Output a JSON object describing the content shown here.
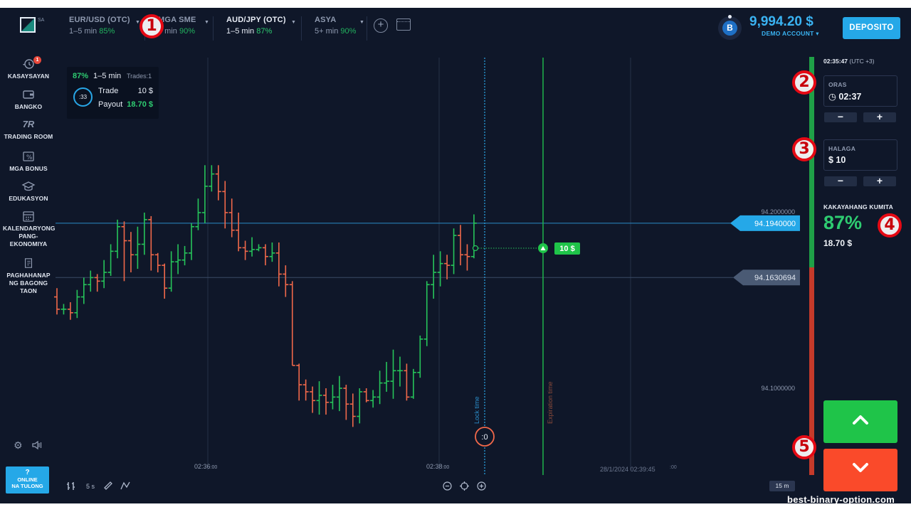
{
  "topbar": {
    "logo_text": "SA",
    "tabs": [
      {
        "name": "EUR/USD (OTC)",
        "range": "1–5 min",
        "pct": "85%"
      },
      {
        "name": "MGA SME",
        "range": "5 min",
        "pct": "90%"
      },
      {
        "name": "AUD/JPY (OTC)",
        "range": "1–5 min",
        "pct": "87%"
      },
      {
        "name": "ASYA",
        "range": "5+ min",
        "pct": "90%"
      }
    ],
    "add_icon": "plus-circle-icon",
    "layout_icon": "window-icon",
    "level_badge": "B",
    "balance": "9,994.20 $",
    "account": "DEMO ACCOUNT ▾",
    "deposit_label": "DEPOSITO"
  },
  "sidebar": {
    "items": [
      {
        "label": "KASAYSAYAN",
        "icon": "history-icon",
        "badge": "1"
      },
      {
        "label": "BANGKO",
        "icon": "wallet-icon"
      },
      {
        "label": "TRADING ROOM",
        "icon": "tr-logo-icon"
      },
      {
        "label": "MGA BONUS",
        "icon": "percent-ticket-icon"
      },
      {
        "label": "EDUKASYON",
        "icon": "graduation-cap-icon"
      },
      {
        "label": "KALENDARYONG PANG-EKONOMIYA",
        "icon": "calendar-icon"
      },
      {
        "label": "PAGHAHANAP NG BAGONG TAON",
        "icon": "scroll-icon"
      }
    ],
    "help_label_1": "?",
    "help_label_2": "ONLINE",
    "help_label_3": "NA TULONG"
  },
  "trade_card": {
    "pct": "87%",
    "range": "1–5 min",
    "trades": "Trades:1",
    "timer": ":33",
    "trade_label": "Trade",
    "trade_value": "10 $",
    "payout_label": "Payout",
    "payout_value": "18.70 $"
  },
  "chart": {
    "price_levels": [
      "94.2000000",
      "94.1000000"
    ],
    "current_price": "94.1940000",
    "open_price": "94.1630694",
    "time_labels": [
      {
        "main": "02:36",
        "sub": ":00"
      },
      {
        "main": "02:38",
        "sub": ":00"
      }
    ],
    "expiry_label": "28/1/2024 02:39:45",
    "expiry_sub": ":00",
    "lock_time_label": "Lock time",
    "expiration_time_label": "Expiration time",
    "countdown": ":0",
    "trade_tag": "10 $",
    "timeframe": "15 m",
    "candle_period": "5 s",
    "colors": {
      "up": "#26c45a",
      "down": "#f0684a",
      "price_line": "#2aa8e8"
    },
    "candles": [
      [
        94.152,
        94.145,
        94.157,
        94.142
      ],
      [
        94.145,
        94.145,
        94.148,
        94.142
      ],
      [
        94.145,
        94.143,
        94.149,
        94.139
      ],
      [
        94.143,
        94.152,
        94.156,
        94.14
      ],
      [
        94.152,
        94.159,
        94.163,
        94.148
      ],
      [
        94.159,
        94.163,
        94.167,
        94.155
      ],
      [
        94.163,
        94.161,
        94.165,
        94.155
      ],
      [
        94.161,
        94.166,
        94.173,
        94.157
      ],
      [
        94.166,
        94.178,
        94.182,
        94.164
      ],
      [
        94.178,
        94.192,
        94.196,
        94.174
      ],
      [
        94.192,
        94.184,
        94.195,
        94.161
      ],
      [
        94.184,
        94.176,
        94.189,
        94.166
      ],
      [
        94.176,
        94.182,
        94.192,
        94.168
      ],
      [
        94.182,
        94.196,
        94.2,
        94.176
      ],
      [
        94.196,
        94.176,
        94.198,
        94.167
      ],
      [
        94.176,
        94.17,
        94.177,
        94.166
      ],
      [
        94.17,
        94.157,
        94.171,
        94.151
      ],
      [
        94.157,
        94.172,
        94.178,
        94.155
      ],
      [
        94.172,
        94.173,
        94.182,
        94.165
      ],
      [
        94.173,
        94.177,
        94.181,
        94.17
      ],
      [
        94.177,
        94.192,
        94.194,
        94.173
      ],
      [
        94.192,
        94.2,
        94.208,
        94.19
      ],
      [
        94.2,
        94.215,
        94.227,
        94.194
      ],
      [
        94.215,
        94.222,
        94.227,
        94.212
      ],
      [
        94.222,
        94.212,
        94.227,
        94.207
      ],
      [
        94.212,
        94.2,
        94.218,
        94.191
      ],
      [
        94.2,
        94.19,
        94.208,
        94.186
      ],
      [
        94.19,
        94.18,
        94.2,
        94.178
      ],
      [
        94.18,
        94.178,
        94.184,
        94.173
      ],
      [
        94.178,
        94.179,
        94.186,
        94.175
      ],
      [
        94.179,
        94.18,
        94.182,
        94.178
      ],
      [
        94.18,
        94.175,
        94.182,
        94.17
      ],
      [
        94.175,
        94.177,
        94.183,
        94.172
      ],
      [
        94.177,
        94.165,
        94.183,
        94.158
      ],
      [
        94.165,
        94.159,
        94.17,
        94.152
      ],
      [
        94.159,
        94.113,
        94.161,
        94.113
      ],
      [
        94.113,
        94.102,
        94.114,
        94.093
      ],
      [
        94.102,
        94.098,
        94.105,
        94.093
      ],
      [
        94.098,
        94.093,
        94.101,
        94.086
      ],
      [
        94.093,
        94.096,
        94.104,
        94.085
      ],
      [
        94.096,
        94.092,
        94.1,
        94.085
      ],
      [
        94.092,
        94.095,
        94.102,
        94.088
      ],
      [
        94.095,
        94.1,
        94.107,
        94.087
      ],
      [
        94.1,
        94.091,
        94.102,
        94.082
      ],
      [
        94.091,
        94.084,
        94.097,
        94.078
      ],
      [
        94.084,
        94.098,
        94.1,
        94.08
      ],
      [
        94.098,
        94.093,
        94.1,
        94.092
      ],
      [
        94.093,
        94.095,
        94.099,
        94.089
      ],
      [
        94.095,
        94.103,
        94.11,
        94.091
      ],
      [
        94.103,
        94.104,
        94.115,
        94.098
      ],
      [
        94.104,
        94.11,
        94.122,
        94.094
      ],
      [
        94.11,
        94.11,
        94.118,
        94.101
      ],
      [
        94.11,
        94.095,
        94.114,
        94.093
      ],
      [
        94.095,
        94.109,
        94.111,
        94.094
      ],
      [
        94.109,
        94.128,
        94.13,
        94.106
      ],
      [
        94.128,
        94.159,
        94.161,
        94.124
      ],
      [
        94.159,
        94.166,
        94.176,
        94.151
      ],
      [
        94.166,
        94.171,
        94.178,
        94.158
      ],
      [
        94.171,
        94.17,
        94.176,
        94.162
      ],
      [
        94.17,
        94.187,
        94.191,
        94.165
      ],
      [
        94.187,
        94.176,
        94.193,
        94.17
      ],
      [
        94.176,
        94.175,
        94.182,
        94.167
      ],
      [
        94.175,
        94.194,
        94.199,
        94.174
      ]
    ]
  },
  "panel": {
    "clock": "02:35:47",
    "tz": "(UTC +3)",
    "time_label": "ORAS",
    "time_value": "02:37",
    "amount_label": "HALAGA",
    "amount_value": "$ 10",
    "minus": "−",
    "plus": "+",
    "profit_label": "KAKAYAHANG KUMITA",
    "profit_pct": "87%",
    "profit_amt": "18.70 $",
    "up_icon": "chevron-up-icon",
    "down_icon": "chevron-down-icon"
  },
  "markers": [
    "1",
    "2",
    "3",
    "4",
    "5"
  ],
  "watermark": "best-binary-option.com"
}
